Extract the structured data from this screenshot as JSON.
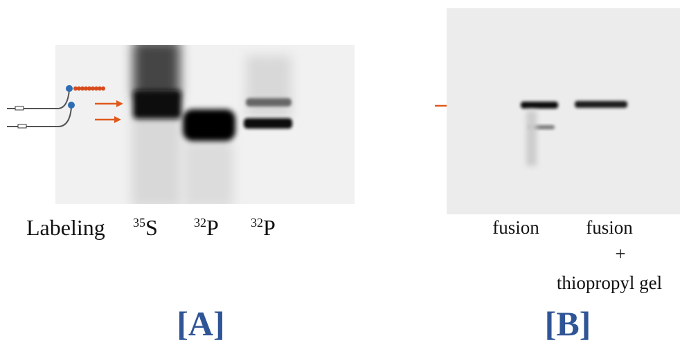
{
  "panel_a": {
    "label": "[A]",
    "row_title": "Labeling",
    "lanes": [
      {
        "isotope_mass": "35",
        "element": "S"
      },
      {
        "isotope_mass": "32",
        "element": "P"
      },
      {
        "isotope_mass": "32",
        "element": "P"
      }
    ]
  },
  "panel_b": {
    "label": "[B]",
    "lanes": [
      {
        "lines": [
          "fusion"
        ]
      },
      {
        "lines": [
          "fusion",
          "+",
          "thiopropyl gel"
        ]
      }
    ]
  }
}
